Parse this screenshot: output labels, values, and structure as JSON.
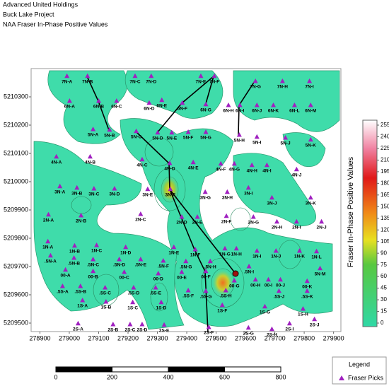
{
  "header": {
    "lines": [
      "Advanced United Holdings",
      "Buck Lake Project",
      "NAA Fraser In-Phase Positive Values"
    ]
  },
  "map": {
    "xlim": [
      278870,
      279925
    ],
    "ylim": [
      5209470,
      5210400
    ],
    "xticks": [
      278900,
      279000,
      279100,
      279200,
      279300,
      279400,
      279500,
      279600,
      279700,
      279800,
      279900
    ],
    "yticks": [
      5209500,
      5209600,
      5209700,
      5209800,
      5209900,
      5210000,
      5210100,
      5210200,
      5210300
    ],
    "pick_color": "#a020c0",
    "picks": [
      {
        "label": "7N-A",
        "x": 278992,
        "y": 5210373
      },
      {
        "label": "7N-B",
        "x": 279062,
        "y": 5210373
      },
      {
        "label": "7N-C",
        "x": 279224,
        "y": 5210373
      },
      {
        "label": "7N-D",
        "x": 279279,
        "y": 5210373
      },
      {
        "label": "7N-E",
        "x": 279448,
        "y": 5210373
      },
      {
        "label": "7N-F",
        "x": 279494,
        "y": 5210373
      },
      {
        "label": "7N-G",
        "x": 279634,
        "y": 5210355
      },
      {
        "label": "7N-H",
        "x": 279726,
        "y": 5210355
      },
      {
        "label": "7N-I",
        "x": 279818,
        "y": 5210355
      },
      {
        "label": "6N-A",
        "x": 279001,
        "y": 5210285
      },
      {
        "label": "6N-B",
        "x": 279100,
        "y": 5210285
      },
      {
        "label": "6N-C",
        "x": 279161,
        "y": 5210285
      },
      {
        "label": "6N-D",
        "x": 279272,
        "y": 5210278
      },
      {
        "label": "6N-E",
        "x": 279315,
        "y": 5210288
      },
      {
        "label": "6N-F",
        "x": 279385,
        "y": 5210278
      },
      {
        "label": "6N-G",
        "x": 279465,
        "y": 5210273
      },
      {
        "label": "6N-H",
        "x": 279542,
        "y": 5210270
      },
      {
        "label": "6N-I",
        "x": 279581,
        "y": 5210270
      },
      {
        "label": "6N-J",
        "x": 279639,
        "y": 5210270
      },
      {
        "label": "6N-K",
        "x": 279695,
        "y": 5210270
      },
      {
        "label": "6N-L",
        "x": 279767,
        "y": 5210270
      },
      {
        "label": "6N-M",
        "x": 279822,
        "y": 5210270
      },
      {
        "label": "5N-A",
        "x": 279081,
        "y": 5210185
      },
      {
        "label": "5N-B",
        "x": 279137,
        "y": 5210183
      },
      {
        "label": "5N-C",
        "x": 279228,
        "y": 5210178
      },
      {
        "label": "5N-D",
        "x": 279301,
        "y": 5210173
      },
      {
        "label": "5N-E",
        "x": 279349,
        "y": 5210173
      },
      {
        "label": "5N-F",
        "x": 279405,
        "y": 5210175
      },
      {
        "label": "5N-G",
        "x": 279465,
        "y": 5210175
      },
      {
        "label": "5N-H",
        "x": 279579,
        "y": 5210165
      },
      {
        "label": "5N-I",
        "x": 279639,
        "y": 5210158
      },
      {
        "label": "5N-J",
        "x": 279736,
        "y": 5210155
      },
      {
        "label": "5N-K",
        "x": 279822,
        "y": 5210148
      },
      {
        "label": "4N-A",
        "x": 278956,
        "y": 5210088
      },
      {
        "label": "4N-B",
        "x": 279071,
        "y": 5210088
      },
      {
        "label": "4N-C",
        "x": 279248,
        "y": 5210078
      },
      {
        "label": "4N-D",
        "x": 279342,
        "y": 5210065
      },
      {
        "label": "4N-E",
        "x": 279422,
        "y": 5210068
      },
      {
        "label": "4N-F",
        "x": 279516,
        "y": 5210063
      },
      {
        "label": "4N-G",
        "x": 279562,
        "y": 5210063
      },
      {
        "label": "4N-H",
        "x": 279622,
        "y": 5210058
      },
      {
        "label": "4N-I",
        "x": 279673,
        "y": 5210058
      },
      {
        "label": "4N-J",
        "x": 279774,
        "y": 5210043
      },
      {
        "label": "3N-A",
        "x": 278968,
        "y": 5209983
      },
      {
        "label": "3N-B",
        "x": 279026,
        "y": 5209978
      },
      {
        "label": "3N-C",
        "x": 279084,
        "y": 5209975
      },
      {
        "label": "3N-D",
        "x": 279154,
        "y": 5209975
      },
      {
        "label": "3N-E",
        "x": 279267,
        "y": 5209973
      },
      {
        "label": "3N-F",
        "x": 279344,
        "y": 5209973
      },
      {
        "label": "3N-G",
        "x": 279463,
        "y": 5209963
      },
      {
        "label": "3N-H",
        "x": 279538,
        "y": 5209963
      },
      {
        "label": "3N-I",
        "x": 279610,
        "y": 5209978
      },
      {
        "label": "3N-J",
        "x": 279690,
        "y": 5209943
      },
      {
        "label": "3N-K",
        "x": 279822,
        "y": 5209943
      },
      {
        "label": "2N-A",
        "x": 278929,
        "y": 5209883
      },
      {
        "label": "2N-B",
        "x": 279040,
        "y": 5209880
      },
      {
        "label": "2N-C",
        "x": 279243,
        "y": 5209885
      },
      {
        "label": "2N-D",
        "x": 279383,
        "y": 5209875
      },
      {
        "label": "2N-E",
        "x": 279436,
        "y": 5209875
      },
      {
        "label": "2N-F",
        "x": 279535,
        "y": 5209878
      },
      {
        "label": "2N-G",
        "x": 279627,
        "y": 5209875
      },
      {
        "label": "2N-H",
        "x": 279707,
        "y": 5209858
      },
      {
        "label": "2N-I",
        "x": 279774,
        "y": 5209858
      },
      {
        "label": "2N-J",
        "x": 279859,
        "y": 5209858
      },
      {
        "label": "1N-A",
        "x": 278927,
        "y": 5209788
      },
      {
        "label": "1N-B",
        "x": 279018,
        "y": 5209773
      },
      {
        "label": "1N-C",
        "x": 279093,
        "y": 5209775
      },
      {
        "label": "1N-D",
        "x": 279192,
        "y": 5209768
      },
      {
        "label": "1N-E",
        "x": 279356,
        "y": 5209768
      },
      {
        "label": "1N-F",
        "x": 279429,
        "y": 5209760
      },
      {
        "label": "1N-G",
        "x": 279530,
        "y": 5209763
      },
      {
        "label": "1N-H",
        "x": 279569,
        "y": 5209763
      },
      {
        "label": "1N-I",
        "x": 279639,
        "y": 5209755
      },
      {
        "label": "1N-J",
        "x": 279704,
        "y": 5209755
      },
      {
        "label": "1N-K",
        "x": 279784,
        "y": 5209755
      },
      {
        "label": "1N-L",
        "x": 279842,
        "y": 5209753
      },
      {
        "label": ".5N-A",
        "x": 278936,
        "y": 5209738
      },
      {
        "label": ".5N-B",
        "x": 279016,
        "y": 5209730
      },
      {
        "label": ".5N-C",
        "x": 279081,
        "y": 5209725
      },
      {
        "label": ".5N-D",
        "x": 279170,
        "y": 5209725
      },
      {
        "label": ".5N-E",
        "x": 279243,
        "y": 5209725
      },
      {
        "label": ".5N-F",
        "x": 279320,
        "y": 5209720
      },
      {
        "label": ".5N-G",
        "x": 279397,
        "y": 5209718
      },
      {
        "label": ".5N-H",
        "x": 279480,
        "y": 5209718
      },
      {
        "label": ".5N-I",
        "x": 279612,
        "y": 5209700
      },
      {
        "label": "5N-M",
        "x": 279854,
        "y": 5209693
      },
      {
        "label": "00-A",
        "x": 278987,
        "y": 5209688
      },
      {
        "label": "00-B",
        "x": 279081,
        "y": 5209683
      },
      {
        "label": "00-C",
        "x": 279187,
        "y": 5209680
      },
      {
        "label": "00-D",
        "x": 279303,
        "y": 5209675
      },
      {
        "label": "00-E",
        "x": 279383,
        "y": 5209680
      },
      {
        "label": "00-F",
        "x": 279465,
        "y": 5209683
      },
      {
        "label": "00-G",
        "x": 279562,
        "y": 5209650
      },
      {
        "label": "00-H",
        "x": 279634,
        "y": 5209653
      },
      {
        "label": "00-I",
        "x": 279678,
        "y": 5209653
      },
      {
        "label": "00-J",
        "x": 279719,
        "y": 5209653
      },
      {
        "label": "00-K",
        "x": 279810,
        "y": 5209648
      },
      {
        "label": ".5S-A",
        "x": 278977,
        "y": 5209630
      },
      {
        "label": ".5S-B",
        "x": 279038,
        "y": 5209630
      },
      {
        "label": ".5S-C",
        "x": 279122,
        "y": 5209625
      },
      {
        "label": ".5S-D",
        "x": 279219,
        "y": 5209625
      },
      {
        "label": ".5S-E",
        "x": 279294,
        "y": 5209625
      },
      {
        "label": ".5S-F",
        "x": 279405,
        "y": 5209615
      },
      {
        "label": ".5S-G",
        "x": 279465,
        "y": 5209613
      },
      {
        "label": ".5S-H",
        "x": 279533,
        "y": 5209615
      },
      {
        "label": ".5S-J",
        "x": 279714,
        "y": 5209613
      },
      {
        "label": ".5S-K",
        "x": 279810,
        "y": 5209613
      },
      {
        "label": "1S-A",
        "x": 279045,
        "y": 5209580
      },
      {
        "label": "1S-B",
        "x": 279125,
        "y": 5209575
      },
      {
        "label": "1S-C",
        "x": 279216,
        "y": 5209573
      },
      {
        "label": "1S-D",
        "x": 279313,
        "y": 5209573
      },
      {
        "label": "1S-F",
        "x": 279521,
        "y": 5209563
      },
      {
        "label": "1S-G",
        "x": 279666,
        "y": 5209558
      },
      {
        "label": "1S-H",
        "x": 279796,
        "y": 5209550
      },
      {
        "label": "2S-A",
        "x": 279030,
        "y": 5209498
      },
      {
        "label": "2S-B",
        "x": 279149,
        "y": 5209495
      },
      {
        "label": "2S-C",
        "x": 279207,
        "y": 5209495
      },
      {
        "label": "2S-D",
        "x": 279248,
        "y": 5209495
      },
      {
        "label": "2S-E",
        "x": 279323,
        "y": 5209493
      },
      {
        "label": "2S-F",
        "x": 279475,
        "y": 5209485
      },
      {
        "label": "2S-G",
        "x": 279610,
        "y": 5209483
      },
      {
        "label": "2S-H",
        "x": 279690,
        "y": 5209478
      },
      {
        "label": "2S-I",
        "x": 279750,
        "y": 5209498
      },
      {
        "label": "2S-J",
        "x": 279835,
        "y": 5209513
      }
    ]
  },
  "colorbar": {
    "title": "Fraser In-Phase Positive Values",
    "lim": [
      0,
      255
    ],
    "ticks": [
      0,
      15,
      30,
      45,
      60,
      75,
      90,
      105,
      120,
      135,
      150,
      165,
      180,
      195,
      210,
      225,
      240,
      255
    ]
  },
  "scale_bar": {
    "ticks": [
      0,
      200,
      400,
      600,
      800
    ]
  },
  "legend": {
    "title": "Legend",
    "entry": "Fraser Picks"
  }
}
